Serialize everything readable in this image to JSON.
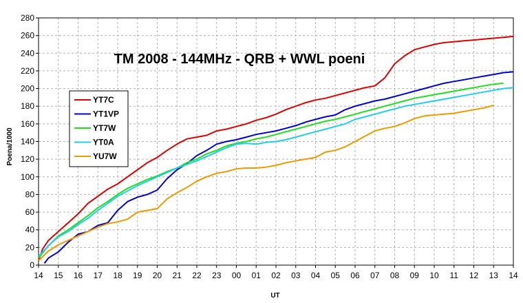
{
  "chart_data": {
    "type": "line",
    "title": "TM 2008 - 144MHz - QRB + WWL poeni",
    "xlabel": "UT",
    "ylabel": "Poena/1000",
    "x_ticks": [
      "14",
      "15",
      "16",
      "17",
      "18",
      "19",
      "20",
      "21",
      "22",
      "23",
      "00",
      "01",
      "02",
      "03",
      "04",
      "05",
      "06",
      "07",
      "08",
      "09",
      "10",
      "11",
      "12",
      "13",
      "14"
    ],
    "xlim": [
      0,
      24
    ],
    "ylim": [
      0,
      280
    ],
    "y_ticks": [
      0,
      20,
      40,
      60,
      80,
      100,
      120,
      140,
      160,
      180,
      200,
      220,
      240,
      260,
      280
    ],
    "grid": true,
    "legend_position": "left",
    "series": [
      {
        "name": "YT7C",
        "color": "#dd0000",
        "x": [
          0,
          0.2,
          0.5,
          1,
          1.5,
          2,
          2.5,
          3,
          3.5,
          4,
          4.5,
          5,
          5.5,
          6,
          6.5,
          7,
          7.5,
          8,
          8.5,
          9,
          9.5,
          10,
          10.5,
          11,
          11.5,
          12,
          12.5,
          13,
          13.5,
          14,
          14.5,
          15,
          15.5,
          16,
          16.5,
          17,
          17.5,
          18,
          18.5,
          19,
          19.5,
          20,
          20.5,
          21,
          21.5,
          22,
          22.5,
          23,
          23.5,
          24
        ],
        "values": [
          5,
          18,
          28,
          38,
          48,
          58,
          70,
          78,
          86,
          92,
          100,
          108,
          116,
          122,
          130,
          137,
          143,
          145,
          147,
          152,
          154,
          157,
          160,
          164,
          167,
          171,
          176,
          180,
          184,
          187,
          189,
          192,
          195,
          198,
          201,
          203,
          212,
          228,
          237,
          244,
          247,
          250,
          252,
          253,
          254,
          255,
          256,
          257,
          258,
          259
        ]
      },
      {
        "name": "YT1VP",
        "color": "#0000cc",
        "x": [
          0.3,
          0.5,
          1,
          1.5,
          2,
          2.5,
          3,
          3.5,
          4,
          4.5,
          5,
          5.5,
          6,
          6.5,
          7,
          7.5,
          8,
          8.5,
          9,
          9.5,
          10,
          10.5,
          11,
          11.5,
          12,
          12.5,
          13,
          13.5,
          14,
          14.5,
          15,
          15.5,
          16,
          16.5,
          17,
          17.5,
          18,
          18.5,
          19,
          19.5,
          20,
          20.5,
          21,
          21.5,
          22,
          22.5,
          23,
          23.5,
          24
        ],
        "values": [
          2,
          8,
          15,
          26,
          35,
          38,
          45,
          48,
          62,
          72,
          77,
          80,
          85,
          98,
          108,
          115,
          124,
          130,
          137,
          140,
          142,
          145,
          148,
          150,
          152,
          155,
          158,
          162,
          165,
          168,
          170,
          176,
          180,
          183,
          186,
          188,
          191,
          194,
          197,
          200,
          203,
          206,
          208,
          210,
          212,
          214,
          216,
          218,
          219
        ]
      },
      {
        "name": "YT7W",
        "color": "#22dd22",
        "x": [
          0,
          0.5,
          1,
          1.5,
          2,
          2.5,
          3,
          3.5,
          4,
          4.5,
          5,
          5.5,
          6,
          6.5,
          7,
          7.5,
          8,
          8.5,
          9,
          9.5,
          10,
          10.5,
          11,
          11.5,
          12,
          12.5,
          13,
          13.5,
          14,
          14.5,
          15,
          15.5,
          16,
          16.5,
          17,
          17.5,
          18,
          18.5,
          19,
          19.5,
          20,
          20.5,
          21,
          21.5,
          22,
          22.5,
          23,
          23.5
        ],
        "values": [
          8,
          22,
          33,
          40,
          48,
          56,
          65,
          72,
          80,
          87,
          92,
          97,
          101,
          106,
          110,
          116,
          120,
          126,
          130,
          135,
          138,
          140,
          143,
          145,
          148,
          151,
          154,
          157,
          160,
          163,
          165,
          168,
          171,
          174,
          177,
          180,
          183,
          186,
          189,
          191,
          193,
          195,
          197,
          199,
          201,
          203,
          205,
          206
        ]
      },
      {
        "name": "YT0A",
        "color": "#22ccee",
        "x": [
          0,
          0.5,
          1,
          1.5,
          2,
          2.5,
          3,
          3.5,
          4,
          4.5,
          5,
          5.5,
          6,
          6.5,
          7,
          7.5,
          8,
          8.5,
          9,
          9.5,
          10,
          10.5,
          11,
          11.5,
          12,
          12.5,
          13,
          13.5,
          14,
          14.5,
          15,
          15.5,
          16,
          16.5,
          17,
          17.5,
          18,
          18.5,
          19,
          19.5,
          20,
          20.5,
          21,
          21.5,
          22,
          22.5,
          23,
          23.5,
          24
        ],
        "values": [
          10,
          22,
          32,
          38,
          46,
          53,
          62,
          70,
          78,
          84,
          90,
          95,
          100,
          105,
          110,
          114,
          118,
          123,
          128,
          133,
          137,
          138,
          137,
          139,
          140,
          142,
          145,
          148,
          151,
          154,
          157,
          160,
          165,
          168,
          171,
          174,
          177,
          180,
          182,
          184,
          186,
          188,
          190,
          192,
          194,
          196,
          198,
          200,
          201
        ]
      },
      {
        "name": "YU7W",
        "color": "#ee9900",
        "x": [
          0,
          0.5,
          1,
          1.5,
          2,
          2.5,
          3,
          3.5,
          4,
          4.5,
          5,
          5.5,
          6,
          6.5,
          7,
          7.5,
          8,
          8.5,
          9,
          9.5,
          10,
          10.5,
          11,
          11.5,
          12,
          12.5,
          13,
          13.5,
          14,
          14.5,
          15,
          15.5,
          16,
          16.5,
          17,
          17.5,
          18,
          18.5,
          19,
          19.5,
          20,
          20.5,
          21,
          21.5,
          22,
          22.5,
          23
        ],
        "values": [
          5,
          16,
          23,
          28,
          33,
          38,
          43,
          47,
          49,
          52,
          60,
          62,
          64,
          75,
          82,
          88,
          95,
          100,
          104,
          106,
          109,
          110,
          110,
          111,
          113,
          116,
          118,
          120,
          122,
          128,
          130,
          134,
          140,
          146,
          152,
          155,
          157,
          161,
          166,
          169,
          170,
          171,
          172,
          174,
          176,
          178,
          181
        ]
      }
    ]
  }
}
